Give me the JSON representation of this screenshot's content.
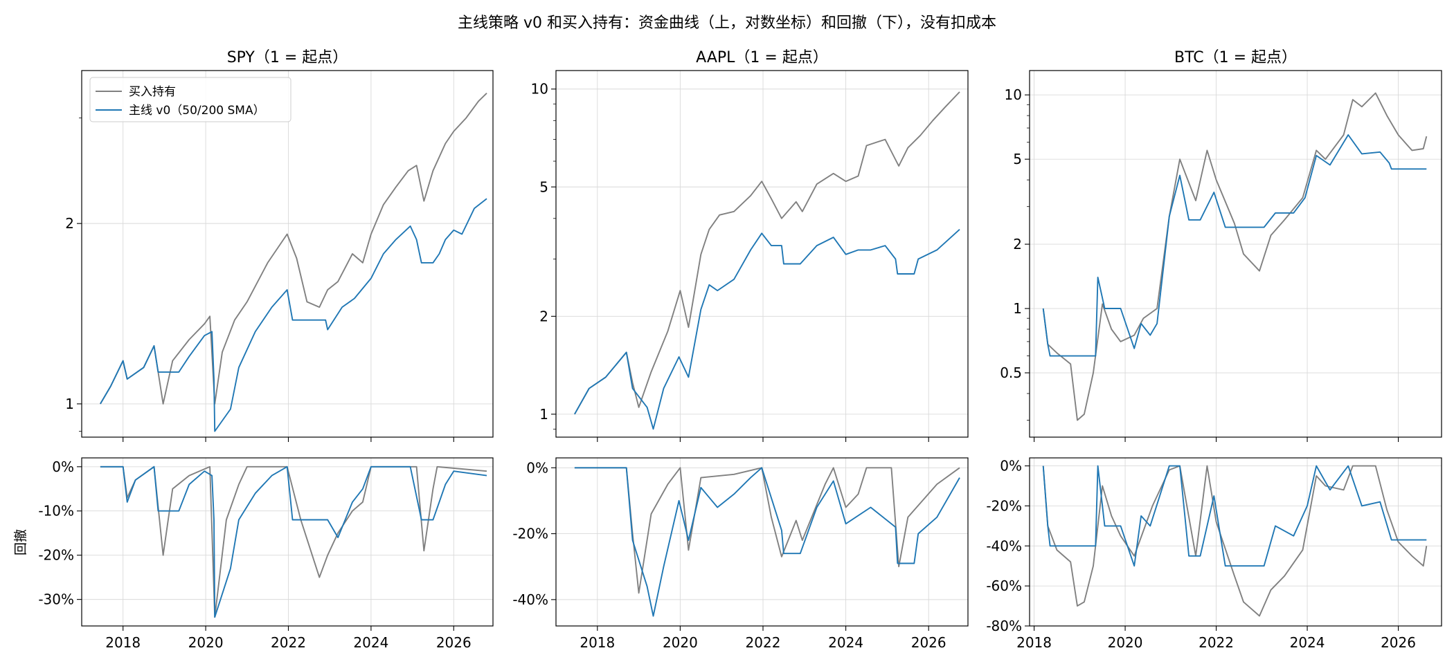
{
  "figure": {
    "title": "主线策略 v0 和买入持有：资金曲线（上，对数坐标）和回撤（下），没有扣成本",
    "drawdown_ylabel": "回撤",
    "legend": [
      {
        "label": "买入持有",
        "color": "#808080"
      },
      {
        "label": "主线 v0（50/200 SMA）",
        "color": "#1f77b4"
      }
    ],
    "legend_position": "upper-left (first panel)",
    "grid": true
  },
  "chart_data": [
    {
      "type": "line",
      "panel": "equity",
      "asset": "SPY",
      "title": "SPY（1 = 起点）",
      "yscale": "log",
      "xlim": [
        2017.0,
        2026.95
      ],
      "ylim": [
        0.88,
        3.6
      ],
      "yticks": [
        1,
        2
      ],
      "yticklabels": [
        "1",
        "2"
      ],
      "series": [
        {
          "name": "买入持有",
          "color": "#808080",
          "x": [
            2017.45,
            2017.7,
            2018.0,
            2018.1,
            2018.5,
            2018.75,
            2018.97,
            2019.2,
            2019.6,
            2019.97,
            2020.1,
            2020.22,
            2020.4,
            2020.7,
            2021.0,
            2021.5,
            2021.97,
            2022.2,
            2022.45,
            2022.75,
            2022.95,
            2023.2,
            2023.55,
            2023.8,
            2024.0,
            2024.3,
            2024.6,
            2024.9,
            2025.1,
            2025.28,
            2025.5,
            2025.8,
            2026.0,
            2026.3,
            2026.6,
            2026.8
          ],
          "y": [
            1.0,
            1.07,
            1.18,
            1.1,
            1.15,
            1.25,
            1.0,
            1.18,
            1.28,
            1.36,
            1.4,
            1.0,
            1.22,
            1.38,
            1.48,
            1.72,
            1.92,
            1.75,
            1.48,
            1.45,
            1.55,
            1.6,
            1.78,
            1.72,
            1.92,
            2.15,
            2.3,
            2.45,
            2.5,
            2.18,
            2.45,
            2.72,
            2.85,
            3.0,
            3.2,
            3.3
          ]
        },
        {
          "name": "主线 v0（50/200 SMA）",
          "color": "#1f77b4",
          "x": [
            2017.45,
            2017.7,
            2018.0,
            2018.1,
            2018.5,
            2018.75,
            2018.85,
            2019.35,
            2019.6,
            2019.97,
            2020.15,
            2020.2,
            2020.22,
            2020.6,
            2020.8,
            2021.2,
            2021.6,
            2021.97,
            2022.1,
            2022.45,
            2022.9,
            2022.95,
            2023.3,
            2023.6,
            2024.0,
            2024.3,
            2024.6,
            2024.95,
            2025.1,
            2025.22,
            2025.5,
            2025.65,
            2025.8,
            2026.0,
            2026.2,
            2026.5,
            2026.8
          ],
          "y": [
            1.0,
            1.07,
            1.18,
            1.1,
            1.15,
            1.25,
            1.13,
            1.13,
            1.2,
            1.3,
            1.32,
            1.1,
            0.9,
            0.98,
            1.15,
            1.32,
            1.45,
            1.55,
            1.38,
            1.38,
            1.38,
            1.33,
            1.45,
            1.5,
            1.62,
            1.78,
            1.88,
            1.98,
            1.88,
            1.72,
            1.72,
            1.78,
            1.88,
            1.95,
            1.92,
            2.12,
            2.2
          ]
        }
      ]
    },
    {
      "type": "line",
      "panel": "equity",
      "asset": "AAPL",
      "title": "AAPL（1 = 起点）",
      "yscale": "log",
      "xlim": [
        2017.0,
        2026.95
      ],
      "ylim": [
        0.85,
        11.4
      ],
      "yticks": [
        1,
        2,
        5,
        10
      ],
      "yticklabels": [
        "1",
        "2",
        "5",
        "10"
      ],
      "series": [
        {
          "name": "买入持有",
          "color": "#808080",
          "x": [
            2017.45,
            2017.8,
            2018.2,
            2018.7,
            2018.85,
            2019.0,
            2019.3,
            2019.7,
            2020.0,
            2020.2,
            2020.5,
            2020.7,
            2020.95,
            2021.3,
            2021.7,
            2021.97,
            2022.2,
            2022.45,
            2022.8,
            2022.95,
            2023.3,
            2023.7,
            2024.0,
            2024.3,
            2024.5,
            2024.95,
            2025.28,
            2025.5,
            2025.8,
            2026.1,
            2026.4,
            2026.75
          ],
          "y": [
            1.0,
            1.2,
            1.3,
            1.55,
            1.25,
            1.05,
            1.35,
            1.8,
            2.4,
            1.85,
            3.1,
            3.7,
            4.1,
            4.2,
            4.7,
            5.2,
            4.6,
            4.0,
            4.5,
            4.2,
            5.1,
            5.5,
            5.2,
            5.4,
            6.7,
            7.0,
            5.8,
            6.6,
            7.2,
            8.0,
            8.8,
            9.8
          ]
        },
        {
          "name": "主线 v0（50/200 SMA）",
          "color": "#1f77b4",
          "x": [
            2017.45,
            2017.8,
            2018.2,
            2018.7,
            2018.85,
            2019.2,
            2019.35,
            2019.6,
            2019.97,
            2020.2,
            2020.5,
            2020.7,
            2020.9,
            2021.3,
            2021.7,
            2021.97,
            2022.2,
            2022.45,
            2022.5,
            2022.9,
            2023.3,
            2023.7,
            2024.0,
            2024.3,
            2024.6,
            2024.95,
            2025.2,
            2025.25,
            2025.65,
            2025.75,
            2026.2,
            2026.75
          ],
          "y": [
            1.0,
            1.2,
            1.3,
            1.55,
            1.2,
            1.05,
            0.9,
            1.2,
            1.5,
            1.3,
            2.1,
            2.5,
            2.4,
            2.6,
            3.2,
            3.6,
            3.3,
            3.3,
            2.9,
            2.9,
            3.3,
            3.5,
            3.1,
            3.2,
            3.2,
            3.3,
            3.0,
            2.7,
            2.7,
            3.0,
            3.2,
            3.7
          ]
        }
      ]
    },
    {
      "type": "line",
      "panel": "equity",
      "asset": "BTC",
      "title": "BTC（1 = 起点）",
      "yscale": "log",
      "xlim": [
        2017.9,
        2026.95
      ],
      "ylim": [
        0.25,
        13.0
      ],
      "yticks": [
        0.5,
        1,
        2,
        5,
        10
      ],
      "yticklabels": [
        "0.5",
        "1",
        "2",
        "5",
        "10"
      ],
      "series": [
        {
          "name": "买入持有",
          "color": "#808080",
          "x": [
            2018.2,
            2018.3,
            2018.5,
            2018.8,
            2018.95,
            2019.1,
            2019.3,
            2019.5,
            2019.7,
            2019.9,
            2020.2,
            2020.4,
            2020.7,
            2020.97,
            2021.2,
            2021.55,
            2021.8,
            2022.0,
            2022.4,
            2022.6,
            2022.95,
            2023.2,
            2023.5,
            2023.9,
            2024.2,
            2024.4,
            2024.8,
            2025.0,
            2025.2,
            2025.5,
            2025.75,
            2026.0,
            2026.3,
            2026.55,
            2026.62
          ],
          "y": [
            1.0,
            0.68,
            0.62,
            0.55,
            0.3,
            0.32,
            0.5,
            1.05,
            0.8,
            0.7,
            0.75,
            0.9,
            1.0,
            2.7,
            5.0,
            3.2,
            5.5,
            4.0,
            2.5,
            1.8,
            1.5,
            2.2,
            2.6,
            3.3,
            5.5,
            5.0,
            6.5,
            9.5,
            8.8,
            10.2,
            8.0,
            6.5,
            5.5,
            5.6,
            6.4
          ]
        },
        {
          "name": "主线 v0（50/200 SMA）",
          "color": "#1f77b4",
          "x": [
            2018.2,
            2018.3,
            2018.35,
            2019.35,
            2019.4,
            2019.55,
            2019.9,
            2020.2,
            2020.35,
            2020.55,
            2020.7,
            2020.97,
            2021.2,
            2021.4,
            2021.65,
            2021.95,
            2022.2,
            2022.5,
            2023.05,
            2023.3,
            2023.7,
            2023.95,
            2024.2,
            2024.5,
            2024.9,
            2025.2,
            2025.6,
            2025.8,
            2025.85,
            2026.62
          ],
          "y": [
            1.0,
            0.68,
            0.6,
            0.6,
            1.4,
            1.0,
            1.0,
            0.65,
            0.85,
            0.75,
            0.85,
            2.7,
            4.2,
            2.6,
            2.6,
            3.5,
            2.4,
            2.4,
            2.4,
            2.8,
            2.8,
            3.3,
            5.2,
            4.7,
            6.5,
            5.3,
            5.4,
            4.8,
            4.5,
            4.5
          ]
        }
      ]
    },
    {
      "type": "line",
      "panel": "drawdown",
      "asset": "SPY",
      "xlim": [
        2017.0,
        2026.95
      ],
      "ylim": [
        -36,
        2
      ],
      "yticks": [
        0,
        -10,
        -20,
        -30
      ],
      "yticklabels": [
        "0%",
        "-10%",
        "-20%",
        "-30%"
      ],
      "xticks": [
        2018,
        2020,
        2022,
        2024,
        2026
      ],
      "xticklabels": [
        "2018",
        "2020",
        "2022",
        "2024",
        "2026"
      ],
      "series": [
        {
          "name": "买入持有",
          "color": "#808080",
          "x": [
            2017.45,
            2018.0,
            2018.1,
            2018.3,
            2018.75,
            2018.97,
            2019.2,
            2019.6,
            2020.1,
            2020.22,
            2020.5,
            2020.8,
            2021.0,
            2021.97,
            2022.3,
            2022.75,
            2022.95,
            2023.2,
            2023.55,
            2023.8,
            2024.0,
            2025.1,
            2025.28,
            2025.5,
            2025.6,
            2026.8
          ],
          "y": [
            0,
            0,
            -7,
            -3,
            0,
            -20,
            -5,
            -2,
            0,
            -34,
            -12,
            -4,
            0,
            0,
            -12,
            -25,
            -20,
            -15,
            -10,
            -8,
            0,
            0,
            -19,
            -5,
            0,
            -1
          ]
        },
        {
          "name": "主线 v0（50/200 SMA）",
          "color": "#1f77b4",
          "x": [
            2017.45,
            2018.0,
            2018.1,
            2018.3,
            2018.75,
            2018.85,
            2019.35,
            2019.6,
            2019.97,
            2020.15,
            2020.2,
            2020.22,
            2020.6,
            2020.8,
            2021.2,
            2021.6,
            2021.97,
            2022.1,
            2022.95,
            2023.2,
            2023.55,
            2023.8,
            2024.0,
            2024.95,
            2025.22,
            2025.5,
            2025.65,
            2025.8,
            2026.0,
            2026.8
          ],
          "y": [
            0,
            0,
            -8,
            -3,
            0,
            -10,
            -10,
            -4,
            -1,
            -2,
            -12,
            -34,
            -23,
            -12,
            -6,
            -2,
            0,
            -12,
            -12,
            -16,
            -8,
            -5,
            0,
            0,
            -12,
            -12,
            -8,
            -4,
            -1,
            -2
          ]
        }
      ]
    },
    {
      "type": "line",
      "panel": "drawdown",
      "asset": "AAPL",
      "xlim": [
        2017.0,
        2026.95
      ],
      "ylim": [
        -48,
        3
      ],
      "yticks": [
        0,
        -20,
        -40
      ],
      "yticklabels": [
        "0%",
        "-20%",
        "-40%"
      ],
      "xticks": [
        2018,
        2020,
        2022,
        2024,
        2026
      ],
      "xticklabels": [
        "2018",
        "2020",
        "2022",
        "2024",
        "2026"
      ],
      "series": [
        {
          "name": "买入持有",
          "color": "#808080",
          "x": [
            2017.45,
            2018.7,
            2018.85,
            2019.0,
            2019.3,
            2019.7,
            2020.0,
            2020.2,
            2020.5,
            2021.3,
            2021.97,
            2022.2,
            2022.45,
            2022.8,
            2022.95,
            2023.5,
            2023.7,
            2024.0,
            2024.3,
            2024.5,
            2025.1,
            2025.28,
            2025.5,
            2026.2,
            2026.75
          ],
          "y": [
            0,
            0,
            -20,
            -38,
            -14,
            -5,
            0,
            -25,
            -3,
            -2,
            0,
            -15,
            -27,
            -16,
            -22,
            -5,
            0,
            -12,
            -8,
            0,
            0,
            -30,
            -15,
            -5,
            0
          ]
        },
        {
          "name": "主线 v0（50/200 SMA）",
          "color": "#1f77b4",
          "x": [
            2017.45,
            2018.7,
            2018.85,
            2019.2,
            2019.35,
            2019.6,
            2019.97,
            2020.2,
            2020.5,
            2020.9,
            2021.3,
            2021.7,
            2021.97,
            2022.45,
            2022.5,
            2022.9,
            2023.3,
            2023.7,
            2024.0,
            2024.6,
            2025.2,
            2025.25,
            2025.65,
            2025.75,
            2026.2,
            2026.75
          ],
          "y": [
            0,
            0,
            -22,
            -36,
            -45,
            -30,
            -10,
            -22,
            -6,
            -12,
            -8,
            -3,
            0,
            -19,
            -26,
            -26,
            -12,
            -4,
            -17,
            -12,
            -18,
            -29,
            -29,
            -20,
            -15,
            -3
          ]
        }
      ]
    },
    {
      "type": "line",
      "panel": "drawdown",
      "asset": "BTC",
      "xlim": [
        2017.9,
        2026.95
      ],
      "ylim": [
        -80,
        4
      ],
      "yticks": [
        0,
        -20,
        -40,
        -60,
        -80
      ],
      "yticklabels": [
        "0%",
        "-20%",
        "-40%",
        "-60%",
        "-80%"
      ],
      "xticks": [
        2018,
        2020,
        2022,
        2024,
        2026
      ],
      "xticklabels": [
        "2018",
        "2020",
        "2022",
        "2024",
        "2026"
      ],
      "series": [
        {
          "name": "买入持有",
          "color": "#808080",
          "x": [
            2018.2,
            2018.3,
            2018.5,
            2018.8,
            2018.95,
            2019.1,
            2019.3,
            2019.5,
            2019.7,
            2019.9,
            2020.2,
            2020.6,
            2020.97,
            2021.2,
            2021.55,
            2021.8,
            2022.0,
            2022.4,
            2022.6,
            2022.95,
            2023.2,
            2023.5,
            2023.9,
            2024.2,
            2024.4,
            2024.8,
            2025.0,
            2025.5,
            2025.75,
            2026.0,
            2026.3,
            2026.55,
            2026.62
          ],
          "y": [
            0,
            -30,
            -42,
            -48,
            -70,
            -68,
            -50,
            -10,
            -25,
            -35,
            -45,
            -20,
            -2,
            0,
            -45,
            0,
            -28,
            -55,
            -68,
            -75,
            -62,
            -55,
            -42,
            -5,
            -10,
            -12,
            0,
            0,
            -22,
            -38,
            -45,
            -50,
            -40
          ]
        },
        {
          "name": "主线 v0（50/200 SMA）",
          "color": "#1f77b4",
          "x": [
            2018.2,
            2018.3,
            2018.35,
            2019.35,
            2019.4,
            2019.55,
            2019.9,
            2020.2,
            2020.35,
            2020.55,
            2020.97,
            2021.2,
            2021.4,
            2021.65,
            2021.95,
            2022.2,
            2023.05,
            2023.3,
            2023.7,
            2024.0,
            2024.2,
            2024.5,
            2024.9,
            2025.2,
            2025.6,
            2025.85,
            2026.62
          ],
          "y": [
            0,
            -30,
            -40,
            -40,
            0,
            -30,
            -30,
            -50,
            -25,
            -30,
            0,
            0,
            -45,
            -45,
            -15,
            -50,
            -50,
            -30,
            -35,
            -20,
            0,
            -12,
            0,
            -20,
            -18,
            -37,
            -37
          ]
        }
      ]
    }
  ]
}
